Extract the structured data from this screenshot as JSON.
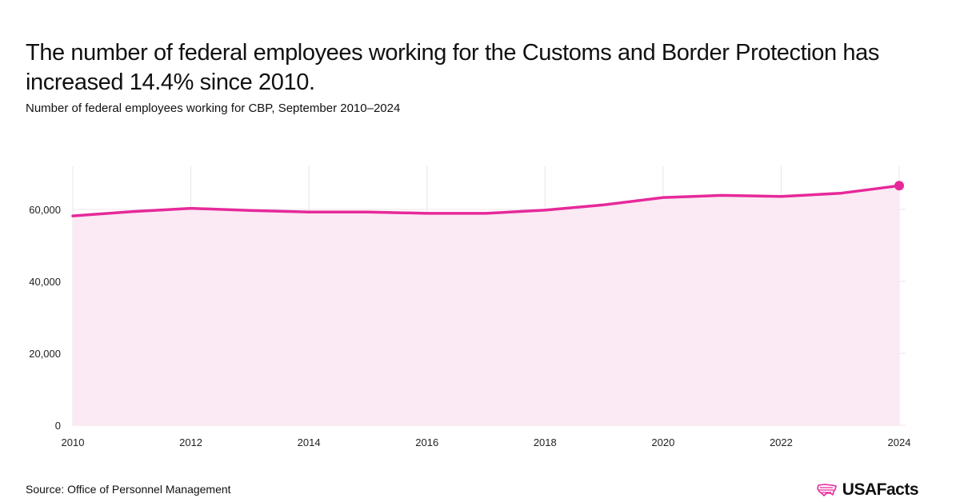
{
  "title": "The number of federal employees working for the Customs and Border Protection has increased 14.4% since 2010.",
  "subtitle": "Number of federal employees working for CBP, September 2010–2024",
  "source": "Source: Office of Personnel Management",
  "brand": "USAFacts",
  "colors": {
    "line": "#e6299a",
    "area": "#fbeaf3",
    "grid": "#ece3e8",
    "text": "#111111"
  },
  "chart_data": {
    "type": "area",
    "title": "The number of federal employees working for the Customs and Border Protection has increased 14.4% since 2010.",
    "xlabel": "",
    "ylabel": "",
    "x": [
      2010,
      2011,
      2012,
      2013,
      2014,
      2015,
      2016,
      2017,
      2018,
      2019,
      2020,
      2021,
      2022,
      2023,
      2024
    ],
    "series": [
      {
        "name": "CBP federal employees",
        "values": [
          58200,
          59400,
          60300,
          59700,
          59300,
          59300,
          58900,
          58900,
          59800,
          61300,
          63300,
          63900,
          63600,
          64500,
          66600
        ]
      }
    ],
    "xticks": [
      "2010",
      "2012",
      "2014",
      "2016",
      "2018",
      "2020",
      "2022",
      "2024"
    ],
    "yticks": [
      "0",
      "20,000",
      "40,000",
      "60,000"
    ],
    "ylim": [
      0,
      72000
    ],
    "xlim": [
      2010,
      2024
    ],
    "grid": true,
    "legend": "none",
    "highlight": "last point"
  }
}
